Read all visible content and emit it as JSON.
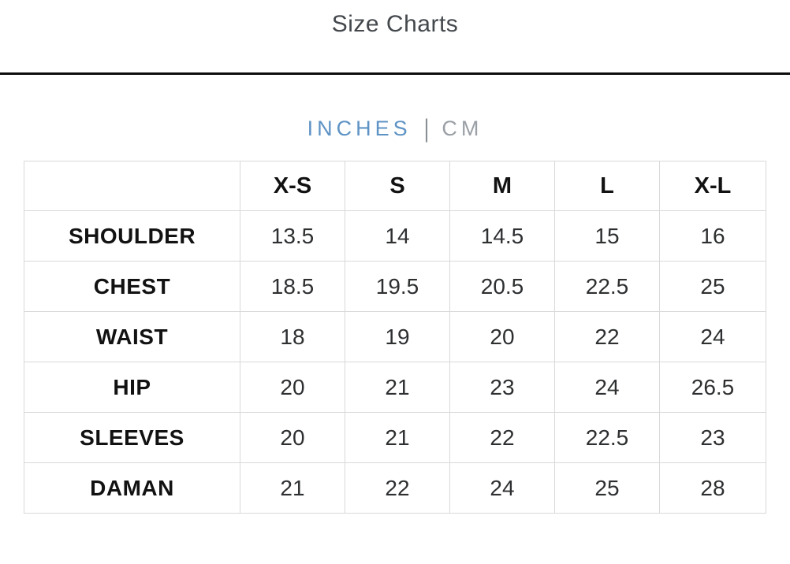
{
  "page": {
    "title": "Size Charts"
  },
  "unit_toggle": {
    "inches_label": "INCHES",
    "separator": "|",
    "cm_label": "CM",
    "active_unit": "INCHES",
    "active_color": "#5e93c5",
    "inactive_color": "#9aa0a6"
  },
  "size_table": {
    "columns": [
      "",
      "X-S",
      "S",
      "M",
      "L",
      "X-L"
    ],
    "rows": [
      {
        "label": "SHOULDER",
        "values": [
          "13.5",
          "14",
          "14.5",
          "15",
          "16"
        ]
      },
      {
        "label": "CHEST",
        "values": [
          "18.5",
          "19.5",
          "20.5",
          "22.5",
          "25"
        ]
      },
      {
        "label": "WAIST",
        "values": [
          "18",
          "19",
          "20",
          "22",
          "24"
        ]
      },
      {
        "label": "HIP",
        "values": [
          "20",
          "21",
          "23",
          "24",
          "26.5"
        ]
      },
      {
        "label": "SLEEVES",
        "values": [
          "20",
          "21",
          "22",
          "22.5",
          "23"
        ]
      },
      {
        "label": "DAMAN",
        "values": [
          "21",
          "22",
          "24",
          "25",
          "28"
        ]
      }
    ]
  },
  "chart_data": {
    "type": "table",
    "title": "Size Charts",
    "unit": "INCHES",
    "columns": [
      "X-S",
      "S",
      "M",
      "L",
      "X-L"
    ],
    "rows": [
      {
        "label": "SHOULDER",
        "values": [
          13.5,
          14,
          14.5,
          15,
          16
        ]
      },
      {
        "label": "CHEST",
        "values": [
          18.5,
          19.5,
          20.5,
          22.5,
          25
        ]
      },
      {
        "label": "WAIST",
        "values": [
          18,
          19,
          20,
          22,
          24
        ]
      },
      {
        "label": "HIP",
        "values": [
          20,
          21,
          23,
          24,
          26.5
        ]
      },
      {
        "label": "SLEEVES",
        "values": [
          20,
          21,
          22,
          22.5,
          23
        ]
      },
      {
        "label": "DAMAN",
        "values": [
          21,
          22,
          24,
          25,
          28
        ]
      }
    ]
  }
}
